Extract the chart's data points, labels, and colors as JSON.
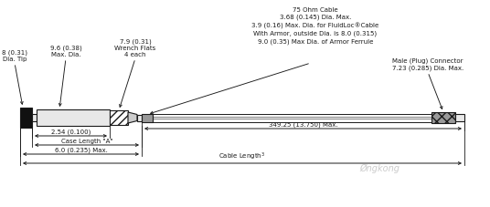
{
  "bg_color": "#ffffff",
  "line_color": "#1a1a1a",
  "fill_dark": "#111111",
  "fill_gray": "#999999",
  "fill_light": "#e8e8e8",
  "fill_mid": "#cccccc",
  "annotations": {
    "tip_label": "8 (0.31)\nDia. Tip",
    "max_dia_label": "9.6 (0.38)\nMax. Dia.",
    "wrench_label": "7.9 (0.31)\nWrench Flats\n4 each",
    "cable_label": "75 Ohm Cable\n3.68 (0.145) Dia. Max.\n3.9 (0.16) Max. Dia. for FluidLoc®Cable\nWith Armor, outside Dia. is 8.0 (0.315)\n9.0 (0.35) Max Dia. of Armor Ferrule",
    "connector_label": "Male (Plug) Connector\n7.23 (0.285) Dia. Max.",
    "dim1_label": "2.54 (0.100)",
    "dim2_label": "Case Length \"A\"",
    "dim3_label": "6.0 (0.235) Max.",
    "dim4_label": "349.25 (13.750) Max.",
    "dim5_label": "Cable Length"
  },
  "watermark": "Øngkong",
  "font_size": 5.0,
  "small_font": 4.5
}
